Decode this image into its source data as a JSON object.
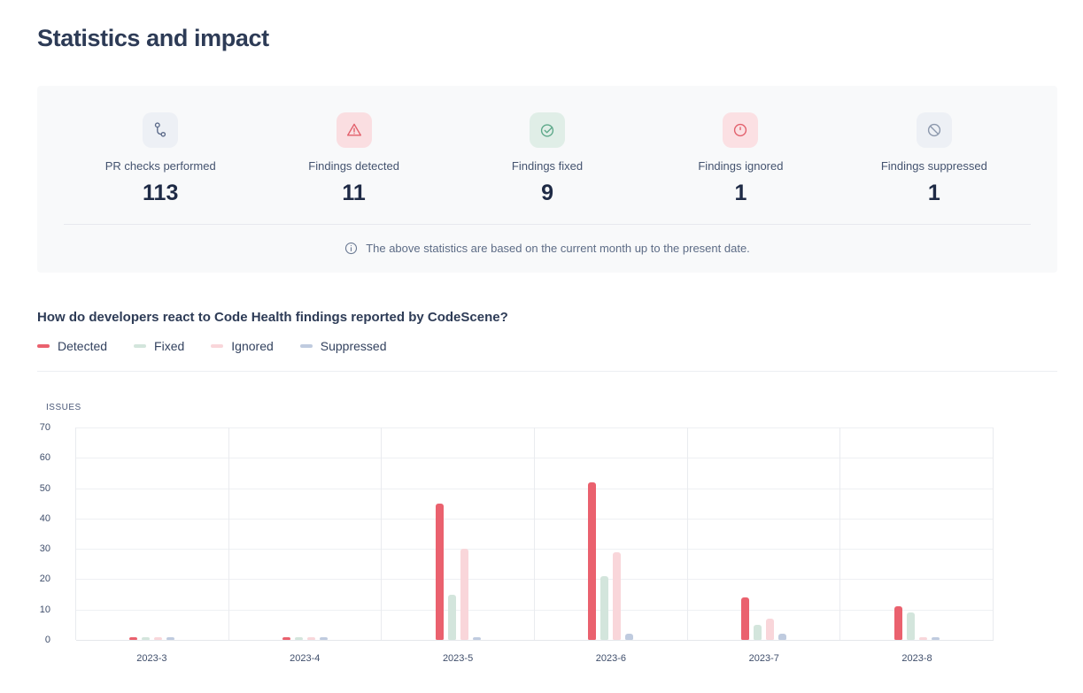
{
  "page": {
    "title": "Statistics and impact"
  },
  "stats_panel": {
    "items": [
      {
        "icon": "pr-branch",
        "label": "PR checks performed",
        "value": "113",
        "tile_bg": "#edf0f5",
        "icon_color": "#5c6b8a"
      },
      {
        "icon": "warning-triangle",
        "label": "Findings detected",
        "value": "11",
        "tile_bg": "#fadee1",
        "icon_color": "#e2606c"
      },
      {
        "icon": "check-circle",
        "label": "Findings fixed",
        "value": "9",
        "tile_bg": "#e0eee7",
        "icon_color": "#5ea98a"
      },
      {
        "icon": "alert-circle",
        "label": "Findings ignored",
        "value": "1",
        "tile_bg": "#fbe0e3",
        "icon_color": "#e2606c"
      },
      {
        "icon": "ban-circle",
        "label": "Findings suppressed",
        "value": "1",
        "tile_bg": "#edf0f5",
        "icon_color": "#8b97ac"
      }
    ],
    "note": "The above statistics are based on the current month up to the present date."
  },
  "section": {
    "heading": "How do developers react to Code Health findings reported by CodeScene?"
  },
  "chart_data": {
    "type": "bar",
    "title": "How do developers react to Code Health findings reported by CodeScene?",
    "ylabel": "ISSUES",
    "xlabel": "",
    "ylim": [
      0,
      70
    ],
    "ytick_step": 10,
    "grid": true,
    "legend_position": "top-left",
    "categories": [
      "2023-3",
      "2023-4",
      "2023-5",
      "2023-6",
      "2023-7",
      "2023-8"
    ],
    "series": [
      {
        "name": "Detected",
        "color": "#ea616e",
        "values": [
          1,
          1,
          45,
          52,
          14,
          11
        ]
      },
      {
        "name": "Fixed",
        "color": "#d3e5dc",
        "values": [
          1,
          1,
          15,
          21,
          5,
          9
        ]
      },
      {
        "name": "Ignored",
        "color": "#f9d6da",
        "values": [
          1,
          1,
          30,
          29,
          7,
          1
        ]
      },
      {
        "name": "Suppressed",
        "color": "#bfcbdf",
        "values": [
          1,
          1,
          1,
          2,
          2,
          1
        ]
      }
    ]
  }
}
